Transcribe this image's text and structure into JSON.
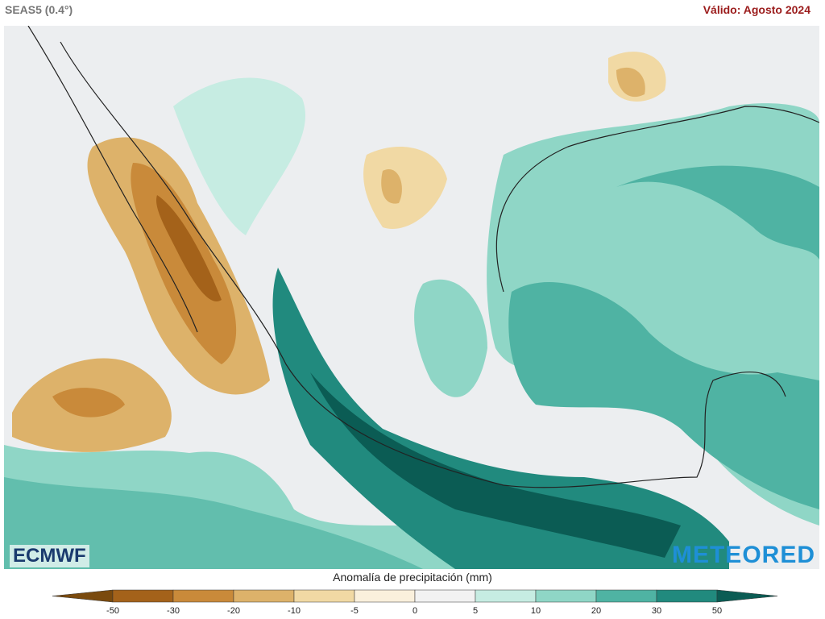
{
  "header": {
    "model": "SEAS5 (0.4°)",
    "valid": "Válido: Agosto 2024"
  },
  "logos": {
    "left": "ECMWF",
    "right": "METEORED"
  },
  "legend": {
    "title": "Anomalía de precipitación (mm)",
    "ticks": [
      -50,
      -30,
      -20,
      -10,
      -5,
      0,
      5,
      10,
      20,
      30,
      50
    ],
    "colors": [
      "#7a4a0e",
      "#a4621a",
      "#c98a3a",
      "#ddb26a",
      "#f1d9a4",
      "#faf0dc",
      "#f2f2f2",
      "#c6ece2",
      "#8fd6c6",
      "#4fb3a3",
      "#218a7e",
      "#0b5c54"
    ]
  }
}
